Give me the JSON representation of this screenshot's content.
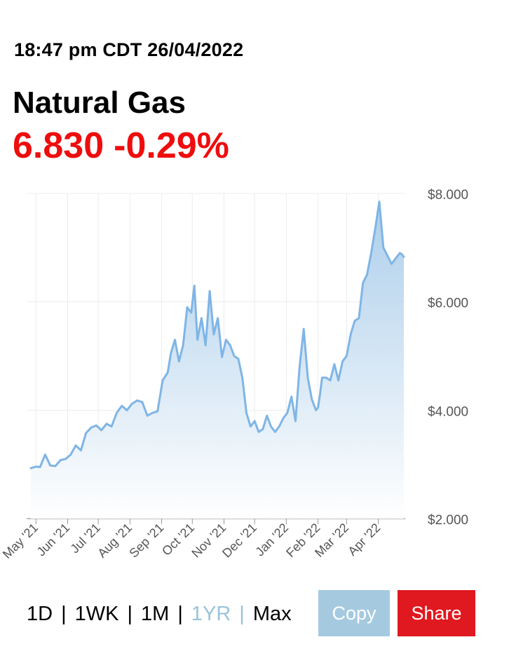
{
  "header": {
    "timestamp": "18:47 pm CDT 26/04/2022",
    "title": "Natural Gas",
    "price": "6.830",
    "change": "-0.29%"
  },
  "colors": {
    "change": "#ee0d0d",
    "line": "#7fb5e6",
    "active_range": "#9ac3da",
    "copy_button": "#a5cae0",
    "share_button": "#e0181f"
  },
  "ranges": [
    {
      "label": "1D",
      "active": false
    },
    {
      "label": "1WK",
      "active": false
    },
    {
      "label": "1M",
      "active": false
    },
    {
      "label": "1YR",
      "active": true
    },
    {
      "label": "Max",
      "active": false
    }
  ],
  "buttons": {
    "copy": "Copy",
    "share": "Share"
  },
  "chart_data": {
    "type": "area",
    "title": "",
    "xlabel": "",
    "ylabel": "",
    "y_axis_side": "right",
    "grid": true,
    "ylim": [
      2,
      8
    ],
    "yticks": [
      2,
      4,
      6,
      8
    ],
    "ytick_labels": [
      "$2.000",
      "$4.000",
      "$6.000",
      "$8.000"
    ],
    "xticks": [
      "2021-05-01",
      "2021-06-01",
      "2021-07-01",
      "2021-08-01",
      "2021-09-01",
      "2021-10-01",
      "2021-11-01",
      "2021-12-01",
      "2022-01-01",
      "2022-02-01",
      "2022-03-01",
      "2022-04-01"
    ],
    "xtick_labels": [
      "May '21",
      "Jun '21",
      "Jul '21",
      "Aug '21",
      "Sep '21",
      "Oct '21",
      "Nov '21",
      "Dec '21",
      "Jan '22",
      "Feb '22",
      "Mar '22",
      "Apr '22"
    ],
    "x": [
      "2021-04-26",
      "2021-05-01",
      "2021-05-05",
      "2021-05-10",
      "2021-05-15",
      "2021-05-20",
      "2021-05-25",
      "2021-05-30",
      "2021-06-04",
      "2021-06-09",
      "2021-06-14",
      "2021-06-19",
      "2021-06-24",
      "2021-06-29",
      "2021-07-04",
      "2021-07-09",
      "2021-07-14",
      "2021-07-19",
      "2021-07-24",
      "2021-07-29",
      "2021-08-03",
      "2021-08-08",
      "2021-08-13",
      "2021-08-18",
      "2021-08-23",
      "2021-08-28",
      "2021-09-02",
      "2021-09-07",
      "2021-09-10",
      "2021-09-14",
      "2021-09-18",
      "2021-09-22",
      "2021-09-26",
      "2021-09-30",
      "2021-10-03",
      "2021-10-06",
      "2021-10-10",
      "2021-10-14",
      "2021-10-18",
      "2021-10-22",
      "2021-10-26",
      "2021-10-30",
      "2021-11-03",
      "2021-11-07",
      "2021-11-11",
      "2021-11-15",
      "2021-11-19",
      "2021-11-23",
      "2021-11-27",
      "2021-12-01",
      "2021-12-05",
      "2021-12-09",
      "2021-12-13",
      "2021-12-17",
      "2021-12-21",
      "2021-12-25",
      "2021-12-29",
      "2022-01-02",
      "2022-01-06",
      "2022-01-10",
      "2022-01-14",
      "2022-01-18",
      "2022-01-22",
      "2022-01-26",
      "2022-01-30",
      "2022-02-01",
      "2022-02-03",
      "2022-02-05",
      "2022-02-09",
      "2022-02-13",
      "2022-02-17",
      "2022-02-21",
      "2022-02-25",
      "2022-03-01",
      "2022-03-05",
      "2022-03-09",
      "2022-03-13",
      "2022-03-17",
      "2022-03-21",
      "2022-03-25",
      "2022-03-29",
      "2022-04-02",
      "2022-04-06",
      "2022-04-10",
      "2022-04-14",
      "2022-04-18",
      "2022-04-20",
      "2022-04-22",
      "2022-04-24",
      "2022-04-26"
    ],
    "series": [
      {
        "values": [
          2.93,
          2.96,
          2.95,
          3.18,
          2.98,
          2.97,
          3.08,
          3.1,
          3.18,
          3.35,
          3.26,
          3.58,
          3.68,
          3.72,
          3.63,
          3.75,
          3.7,
          3.95,
          4.08,
          4.0,
          4.12,
          4.18,
          4.15,
          3.9,
          3.95,
          3.98,
          4.55,
          4.7,
          5.05,
          5.3,
          4.9,
          5.2,
          5.9,
          5.8,
          6.3,
          5.3,
          5.7,
          5.2,
          6.2,
          5.4,
          5.7,
          4.98,
          5.3,
          5.2,
          5.0,
          4.95,
          4.6,
          3.95,
          3.7,
          3.8,
          3.6,
          3.65,
          3.9,
          3.7,
          3.6,
          3.7,
          3.85,
          3.95,
          4.25,
          3.8,
          4.8,
          5.5,
          4.6,
          4.2,
          4.0,
          4.05,
          4.3,
          4.6,
          4.6,
          4.55,
          4.85,
          4.55,
          4.9,
          5.0,
          5.4,
          5.65,
          5.7,
          6.35,
          6.5,
          6.9,
          7.35,
          7.85,
          7.0,
          6.85,
          6.7,
          6.8,
          6.85,
          6.9,
          6.88,
          6.83
        ]
      }
    ]
  }
}
